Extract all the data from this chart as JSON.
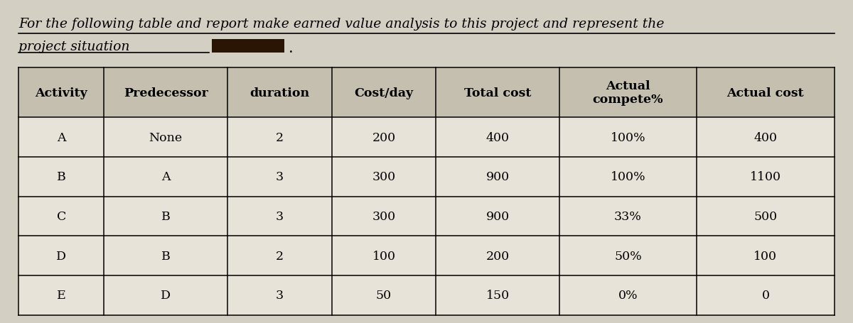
{
  "title_line1": "For the following table and report make earned value analysis to this project and represent the",
  "title_line2": "project situation",
  "bg_color": "#d4cfc3",
  "table_bg": "#e8e3d8",
  "header_bg": "#c5bfb0",
  "border_color": "#000000",
  "columns": [
    "Activity",
    "Predecessor",
    "duration",
    "Cost/day",
    "Total cost",
    "Actual\ncompete%",
    "Actual cost"
  ],
  "rows": [
    [
      "A",
      "None",
      "2",
      "200",
      "400",
      "100%",
      "400"
    ],
    [
      "B",
      "A",
      "3",
      "300",
      "900",
      "100%",
      "1100"
    ],
    [
      "C",
      "B",
      "3",
      "300",
      "900",
      "33%",
      "500"
    ],
    [
      "D",
      "B",
      "2",
      "100",
      "200",
      "50%",
      "100"
    ],
    [
      "E",
      "D",
      "3",
      "50",
      "150",
      "0%",
      "0"
    ]
  ],
  "font_size_title": 13.5,
  "font_size_table": 12.5,
  "fig_width": 12.0,
  "fig_height": 4.56,
  "dpi": 100
}
